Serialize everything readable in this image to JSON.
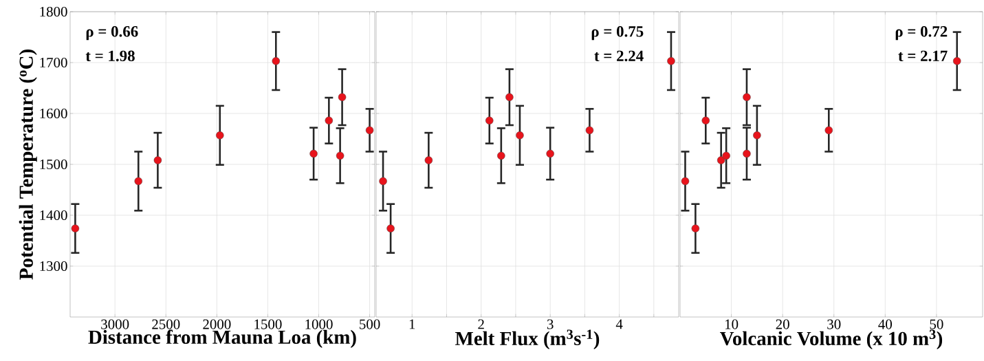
{
  "chart_data": [
    {
      "type": "scatter",
      "xlabel": "Distance from Mauna Loa (km)",
      "ylabel": "Potential Temperature ($^{o}$C)",
      "annotations": [
        "ρ = 0.66",
        "t  = 1.98"
      ],
      "x": [
        3390,
        2770,
        2580,
        1970,
        1420,
        1050,
        900,
        790,
        770,
        500
      ],
      "values": [
        1374,
        1467,
        1508,
        1557,
        1703,
        1521,
        1586,
        1517,
        1632,
        1567
      ],
      "errors": [
        48,
        58,
        54,
        58,
        57,
        51,
        45,
        54,
        55,
        42
      ],
      "color": "#e8141c",
      "marker": "circle",
      "grid": true,
      "xlim": [
        3440,
        450
      ],
      "xticks": [
        3000,
        2500,
        2000,
        1500,
        1000,
        500
      ],
      "ylim": [
        1200,
        1800
      ],
      "yticks": [
        1300,
        1400,
        1500,
        1600,
        1700,
        1800
      ]
    },
    {
      "type": "scatter",
      "xlabel": "Melt Flux (m$^{3}$s$^{-1}$)",
      "annotations": [
        "ρ = 0.75",
        "t  = 2.24"
      ],
      "x": [
        0.58,
        0.69,
        1.24,
        2.12,
        2.29,
        2.41,
        2.56,
        3.0,
        3.57,
        4.75
      ],
      "values": [
        1467,
        1374,
        1508,
        1586,
        1517,
        1632,
        1557,
        1521,
        1567,
        1703
      ],
      "errors": [
        58,
        48,
        54,
        45,
        54,
        55,
        58,
        51,
        42,
        57
      ],
      "color": "#e8141c",
      "marker": "circle",
      "grid": true,
      "tick_labels": "x",
      "xlim": [
        0.48,
        4.86
      ],
      "xticks": [
        1,
        {
          "value": 1.5,
          "label": null
        },
        2,
        {
          "value": 2.5,
          "label": null
        },
        3,
        {
          "value": 3.5,
          "label": null
        },
        4,
        {
          "value": 4.5,
          "label": null
        }
      ],
      "ylim": [
        1200,
        1800
      ],
      "yticks": [
        1300,
        1400,
        1500,
        1600,
        1700,
        1800
      ]
    },
    {
      "type": "scatter",
      "xlabel": "Volcanic Volume (x 10 m$^{3}$)",
      "annotations": [
        "ρ = 0.72",
        "t  = 2.17"
      ],
      "x": [
        1,
        3,
        5,
        8,
        9,
        13,
        13,
        15,
        29,
        54
      ],
      "values": [
        1467,
        1374,
        1586,
        1508,
        1517,
        1632,
        1521,
        1557,
        1567,
        1703
      ],
      "errors": [
        58,
        48,
        45,
        54,
        54,
        55,
        51,
        58,
        42,
        57
      ],
      "color": "#e8141c",
      "marker": "circle",
      "grid": true,
      "tick_labels": "x",
      "xlim": [
        0,
        59
      ],
      "xticks": [
        10,
        20,
        30,
        40,
        50
      ],
      "ylim": [
        1200,
        1800
      ],
      "yticks": [
        1300,
        1400,
        1500,
        1600,
        1700,
        1800
      ]
    }
  ]
}
